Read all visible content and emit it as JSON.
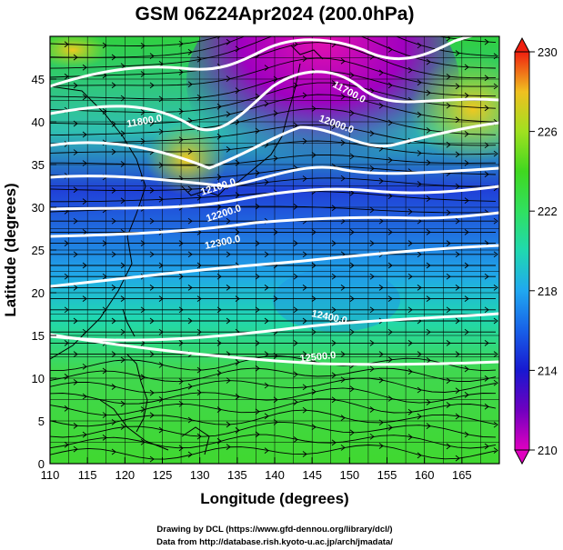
{
  "title": "GSM 06Z24Apr2024 (200.0hPa)",
  "xlabel": "Longitude (degrees)",
  "ylabel": "Latitude  (degrees)",
  "x_ticks": [
    "110",
    "115",
    "120",
    "125",
    "130",
    "135",
    "140",
    "145",
    "150",
    "155",
    "160",
    "165"
  ],
  "y_ticks": [
    "0",
    "5",
    "10",
    "15",
    "20",
    "25",
    "30",
    "35",
    "40",
    "45"
  ],
  "colorbar_ticks": [
    "230",
    "226",
    "222",
    "218",
    "214",
    "210"
  ],
  "contour_labels": [
    "11700.0",
    "11800.0",
    "12000.0",
    "12100.0",
    "12200.0",
    "12300.0",
    "12400.0",
    "12500.0"
  ],
  "credits": [
    "Drawing by DCL (https://www.gfd-dennou.org/library/dcl/)",
    "Data from http://database.rish.kyoto-u.ac.jp/arch/jmadata/"
  ],
  "chart_data": {
    "type": "heatmap",
    "title": "GSM 06Z24Apr2024 (200.0hPa)",
    "xlabel": "Longitude (degrees)",
    "ylabel": "Latitude  (degrees)",
    "xlim": [
      110,
      170
    ],
    "ylim": [
      0,
      50
    ],
    "colorbar_range": [
      210,
      230
    ],
    "colorbar_ticks": [
      210,
      214,
      218,
      222,
      226,
      230
    ],
    "overlays": [
      "geopotential-height contours (white)",
      "wind streamlines (black arrows)",
      "coastlines",
      "lat-lon grid"
    ],
    "contours": [
      {
        "label": "11700.0",
        "approx_lon": 145,
        "approx_lat": 46
      },
      {
        "label": "11800.0",
        "approx_lon": 127,
        "approx_lat": 41
      },
      {
        "label": "12000.0",
        "approx_lon": 147,
        "approx_lat": 41
      },
      {
        "label": "12100.0",
        "approx_lon": 130,
        "approx_lat": 33
      },
      {
        "label": "12200.0",
        "approx_lon": 130,
        "approx_lat": 30
      },
      {
        "label": "12300.0",
        "approx_lon": 130,
        "approx_lat": 27
      },
      {
        "label": "12400.0",
        "approx_lon": 147,
        "approx_lat": 19
      },
      {
        "label": "12500.0",
        "approx_lon": 146,
        "approx_lat": 13
      }
    ]
  }
}
